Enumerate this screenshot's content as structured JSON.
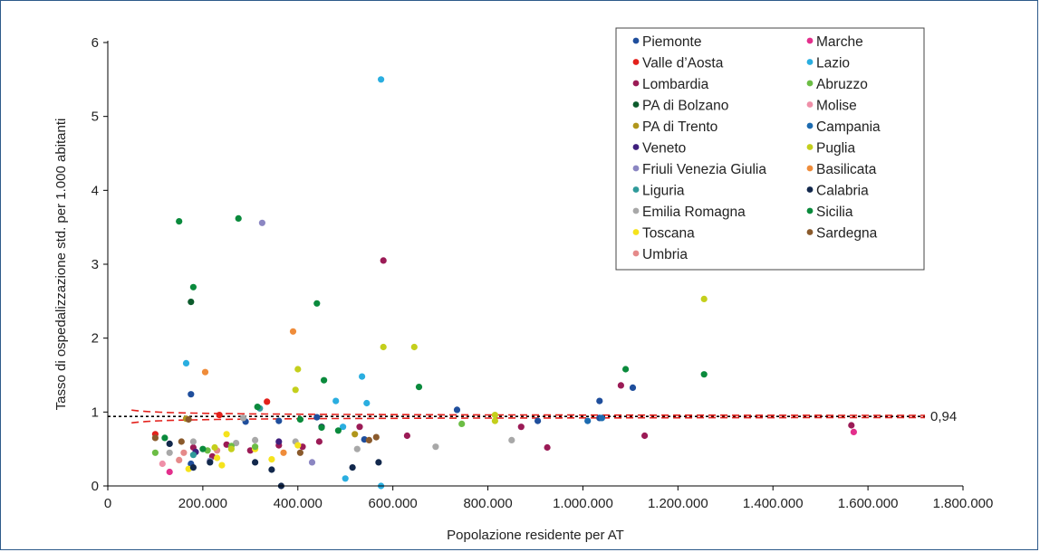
{
  "chart_data": {
    "type": "scatter",
    "xlabel": "Popolazione residente per AT",
    "ylabel": "Tasso di ospedalizzazione std. per 1.000 abitanti",
    "xlim": [
      0,
      1800000
    ],
    "ylim": [
      0,
      6
    ],
    "x_tick_labels": [
      "0",
      "200.000",
      "400.000",
      "600.000",
      "800.000",
      "1.000.000",
      "1.200.000",
      "1.400.000",
      "1.600.000",
      "1.800.000"
    ],
    "y_tick_labels": [
      "0",
      "1",
      "2",
      "3",
      "4",
      "5",
      "6"
    ],
    "reference_line": {
      "value": 0.94,
      "label": "0,94",
      "style": "dotted",
      "color": "#000000"
    },
    "control_limits": {
      "style": "dashed",
      "color": "#e3211c"
    },
    "legend_position": "top-right",
    "series": [
      {
        "name": "Piemonte",
        "color": "#1f4e9c",
        "points": [
          [
            175000,
            0.3
          ],
          [
            290000,
            0.87
          ],
          [
            360000,
            0.88
          ],
          [
            540000,
            0.63
          ],
          [
            735000,
            1.03
          ],
          [
            905000,
            0.88
          ],
          [
            1035000,
            1.15
          ],
          [
            1105000,
            1.33
          ],
          [
            1035000,
            0.92
          ],
          [
            175000,
            1.24
          ],
          [
            440000,
            0.93
          ]
        ]
      },
      {
        "name": "Valle d’Aosta",
        "color": "#e3211c",
        "points": [
          [
            100000,
            0.7
          ],
          [
            235000,
            0.96
          ],
          [
            335000,
            1.14
          ]
        ]
      },
      {
        "name": "Lombardia",
        "color": "#9b1b56",
        "points": [
          [
            580000,
            3.05
          ],
          [
            180000,
            0.52
          ],
          [
            220000,
            0.4
          ],
          [
            250000,
            0.56
          ],
          [
            300000,
            0.48
          ],
          [
            360000,
            0.55
          ],
          [
            410000,
            0.53
          ],
          [
            445000,
            0.6
          ],
          [
            530000,
            0.8
          ],
          [
            630000,
            0.68
          ],
          [
            870000,
            0.8
          ],
          [
            925000,
            0.52
          ],
          [
            1080000,
            1.36
          ],
          [
            1130000,
            0.68
          ],
          [
            1565000,
            0.82
          ]
        ]
      },
      {
        "name": "PA di Bolzano",
        "color": "#0c5b2c",
        "points": [
          [
            175000,
            2.49
          ]
        ]
      },
      {
        "name": "PA di Trento",
        "color": "#b0961b",
        "points": [
          [
            165000,
            0.91
          ],
          [
            520000,
            0.7
          ]
        ]
      },
      {
        "name": "Veneto",
        "color": "#3f1f7d",
        "points": [
          [
            185000,
            0.46
          ],
          [
            360000,
            0.6
          ]
        ]
      },
      {
        "name": "Friuli Venezia Giulia",
        "color": "#8b86c2",
        "points": [
          [
            325000,
            3.56
          ],
          [
            430000,
            0.32
          ],
          [
            215000,
            0.34
          ]
        ]
      },
      {
        "name": "Liguria",
        "color": "#2f9a9a",
        "points": [
          [
            320000,
            1.05
          ],
          [
            180000,
            0.42
          ]
        ]
      },
      {
        "name": "Emilia Romagna",
        "color": "#a8a8a8",
        "points": [
          [
            130000,
            0.45
          ],
          [
            180000,
            0.6
          ],
          [
            270000,
            0.58
          ],
          [
            310000,
            0.62
          ],
          [
            395000,
            0.6
          ],
          [
            525000,
            0.5
          ],
          [
            690000,
            0.53
          ],
          [
            850000,
            0.62
          ],
          [
            285000,
            0.92
          ]
        ]
      },
      {
        "name": "Toscana",
        "color": "#f5e31c",
        "points": [
          [
            170000,
            0.23
          ],
          [
            230000,
            0.38
          ],
          [
            250000,
            0.7
          ],
          [
            310000,
            0.5
          ],
          [
            345000,
            0.36
          ],
          [
            400000,
            0.55
          ],
          [
            240000,
            0.28
          ]
        ]
      },
      {
        "name": "Umbria",
        "color": "#e58a8a",
        "points": [
          [
            150000,
            0.35
          ],
          [
            160000,
            0.45
          ],
          [
            230000,
            0.48
          ]
        ]
      },
      {
        "name": "Marche",
        "color": "#e32f8c",
        "points": [
          [
            130000,
            0.19
          ],
          [
            1570000,
            0.73
          ]
        ]
      },
      {
        "name": "Lazio",
        "color": "#2aaee0",
        "points": [
          [
            575000,
            5.5
          ],
          [
            165000,
            1.66
          ],
          [
            480000,
            1.15
          ],
          [
            535000,
            1.48
          ],
          [
            545000,
            1.12
          ],
          [
            495000,
            0.8
          ],
          [
            500000,
            0.1
          ],
          [
            575000,
            0.0
          ]
        ]
      },
      {
        "name": "Abruzzo",
        "color": "#6cbd45",
        "points": [
          [
            100000,
            0.45
          ],
          [
            210000,
            0.48
          ],
          [
            260000,
            0.54
          ],
          [
            310000,
            0.53
          ],
          [
            405000,
            0.9
          ],
          [
            745000,
            0.84
          ]
        ]
      },
      {
        "name": "Molise",
        "color": "#ef8fa8",
        "points": [
          [
            115000,
            0.3
          ]
        ]
      },
      {
        "name": "Campania",
        "color": "#1c6bb0",
        "points": [
          [
            1010000,
            0.88
          ],
          [
            1040000,
            0.92
          ]
        ]
      },
      {
        "name": "Puglia",
        "color": "#c4cf1c",
        "points": [
          [
            1255000,
            2.53
          ],
          [
            580000,
            1.88
          ],
          [
            645000,
            1.88
          ],
          [
            400000,
            1.58
          ],
          [
            395000,
            1.3
          ],
          [
            815000,
            0.88
          ],
          [
            815000,
            0.96
          ],
          [
            225000,
            0.52
          ],
          [
            260000,
            0.5
          ]
        ]
      },
      {
        "name": "Basilicata",
        "color": "#ef8c3a",
        "points": [
          [
            390000,
            2.09
          ],
          [
            205000,
            1.54
          ],
          [
            370000,
            0.45
          ]
        ]
      },
      {
        "name": "Calabria",
        "color": "#12284c",
        "points": [
          [
            130000,
            0.57
          ],
          [
            180000,
            0.25
          ],
          [
            215000,
            0.32
          ],
          [
            310000,
            0.32
          ],
          [
            345000,
            0.22
          ],
          [
            365000,
            0.0
          ],
          [
            450000,
            0.8
          ],
          [
            515000,
            0.25
          ],
          [
            570000,
            0.32
          ]
        ]
      },
      {
        "name": "Sicilia",
        "color": "#0a8a3c",
        "points": [
          [
            150000,
            3.58
          ],
          [
            275000,
            3.62
          ],
          [
            180000,
            2.69
          ],
          [
            440000,
            2.47
          ],
          [
            455000,
            1.43
          ],
          [
            655000,
            1.34
          ],
          [
            1090000,
            1.58
          ],
          [
            1255000,
            1.51
          ],
          [
            315000,
            1.07
          ],
          [
            120000,
            0.65
          ],
          [
            200000,
            0.5
          ],
          [
            405000,
            0.9
          ],
          [
            450000,
            0.79
          ],
          [
            485000,
            0.75
          ]
        ]
      },
      {
        "name": "Sardegna",
        "color": "#8a5a2c",
        "points": [
          [
            100000,
            0.65
          ],
          [
            155000,
            0.6
          ],
          [
            170000,
            0.9
          ],
          [
            550000,
            0.62
          ],
          [
            565000,
            0.66
          ],
          [
            405000,
            0.45
          ]
        ]
      }
    ]
  }
}
